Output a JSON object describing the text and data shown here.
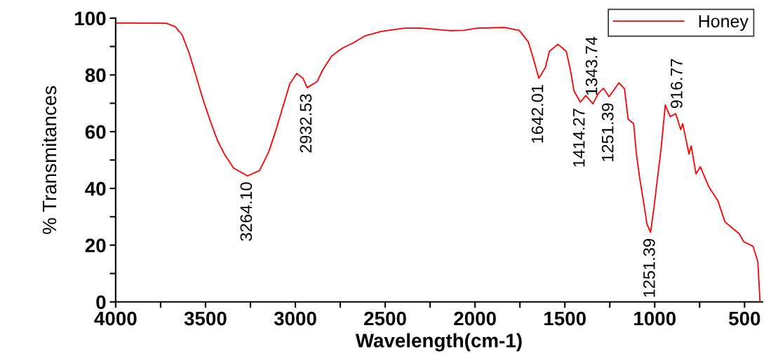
{
  "chart_data": {
    "type": "line",
    "xlabel": "Wavelength(cm-1)",
    "ylabel": "% Transmitances",
    "x": [
      3992,
      3719,
      3668,
      3629,
      3590,
      3551,
      3512,
      3473,
      3434,
      3395,
      3344,
      3266,
      3199,
      3148,
      3109,
      3070,
      3031,
      2992,
      2957,
      2934,
      2879,
      2848,
      2797,
      2742,
      2680,
      2613,
      2523,
      2391,
      2301,
      2145,
      2066,
      1988,
      1832,
      1754,
      1703,
      1676,
      1645,
      1609,
      1586,
      1539,
      1492,
      1469,
      1449,
      1414,
      1383,
      1344,
      1313,
      1285,
      1254,
      1199,
      1168,
      1148,
      1117,
      1102,
      1082,
      1063,
      1043,
      1023,
      1004,
      984,
      965,
      941,
      914,
      883,
      855,
      844,
      809,
      797,
      770,
      746,
      699,
      648,
      609,
      531,
      504,
      453,
      426,
      414
    ],
    "series": [
      {
        "name": "Honey",
        "color": "#ff0000",
        "values": [
          98.3,
          98.2,
          97,
          94,
          87.5,
          79.3,
          71,
          63.7,
          57,
          52.1,
          47.2,
          44.4,
          46.3,
          52.9,
          60.3,
          68.6,
          76.8,
          80.5,
          78.8,
          75.5,
          77.6,
          81.7,
          86.7,
          89.3,
          91.2,
          93.7,
          95.3,
          96.5,
          96.5,
          95.6,
          95.7,
          96.5,
          96.7,
          95.7,
          91.6,
          85.9,
          78.8,
          82.5,
          88.3,
          90.8,
          88.3,
          81.7,
          74.3,
          70.4,
          72.7,
          69.8,
          73.5,
          75.3,
          72.3,
          77.2,
          75.1,
          64.4,
          62.8,
          52.1,
          43,
          35.6,
          27.4,
          24.5,
          33.2,
          43.9,
          53.7,
          69.4,
          65.3,
          66.3,
          60.7,
          62.8,
          52.1,
          55,
          45.1,
          47.6,
          40.6,
          35.6,
          28.2,
          24.1,
          21.2,
          19.6,
          14.2,
          0.2
        ]
      }
    ],
    "xlim": [
      4000,
      400
    ],
    "ylim": [
      0,
      100
    ],
    "xticks": [
      4000,
      {
        "value": 3750,
        "label": null
      },
      3500,
      {
        "value": 3250,
        "label": null
      },
      3000,
      {
        "value": 2750,
        "label": null
      },
      2500,
      {
        "value": 2250,
        "label": null
      },
      2000,
      {
        "value": 1750,
        "label": null
      },
      1500,
      {
        "value": 1250,
        "label": null
      },
      1000,
      {
        "value": 750,
        "label": null
      },
      500
    ],
    "yticks": [
      0,
      {
        "value": 10,
        "label": null
      },
      20,
      {
        "value": 30,
        "label": null
      },
      40,
      {
        "value": 50,
        "label": null
      },
      60,
      {
        "value": 70,
        "label": null
      },
      80,
      {
        "value": 90,
        "label": null
      },
      100
    ],
    "annotations": [
      {
        "text": "3264.10",
        "x": 3266,
        "y": 44.4
      },
      {
        "text": "2932.53",
        "x": 2934,
        "y": 75.5
      },
      {
        "text": "1642.01",
        "x": 1645,
        "y": 78.8
      },
      {
        "text": "1414.27",
        "x": 1414,
        "y": 70.4
      },
      {
        "text": "1343.74",
        "x": 1344,
        "y": 69.8
      },
      {
        "text": "1251.39",
        "x": 1254,
        "y": 72.3
      },
      {
        "text": "1251.39",
        "x": 1023,
        "y": 24.5
      },
      {
        "text": "916.77",
        "x": 914,
        "y": 65.3
      }
    ],
    "grid": false,
    "legend": "top right",
    "marker": "none",
    "line_style": "solid"
  }
}
